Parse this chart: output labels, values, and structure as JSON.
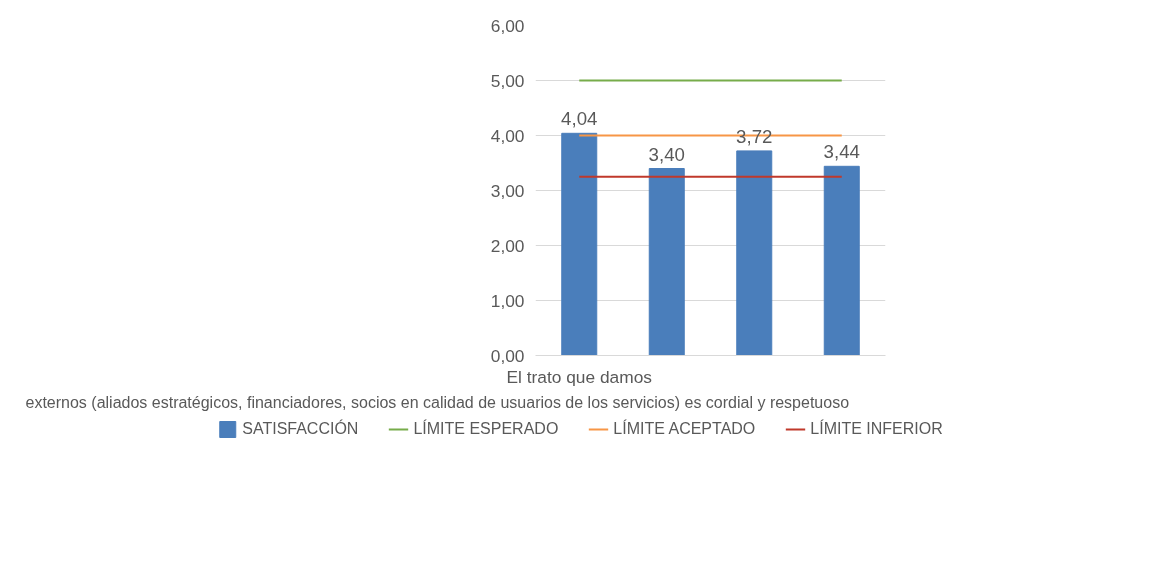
{
  "chart_data": {
    "type": "bar",
    "categories": [
      "El trato que damos",
      null,
      null,
      null
    ],
    "series": [
      {
        "name": "SATISFACCIÓN",
        "color": "#4a7ebb",
        "values": [
          4.04,
          3.4,
          3.72,
          3.44
        ],
        "value_labels": [
          "4,04",
          "3,40",
          "3,72",
          "3,44"
        ]
      },
      {
        "name": "LÍMITE ESPERADO",
        "type": "line",
        "color": "#77ac4a",
        "values": [
          5,
          5,
          5,
          5
        ]
      },
      {
        "name": "LÍMITE ACEPTADO",
        "type": "line",
        "color": "#f79646",
        "values": [
          4,
          4,
          4,
          4
        ]
      },
      {
        "name": "LÍMITE INFERIOR",
        "type": "line",
        "color": "#c0392b",
        "values": [
          3.25,
          3.25,
          3.25,
          3.25
        ]
      }
    ],
    "ylim": [
      0,
      6
    ],
    "yticks": [
      {
        "value": 0,
        "label": "0,00"
      },
      {
        "value": 1,
        "label": "1,00"
      },
      {
        "value": 2,
        "label": "2,00"
      },
      {
        "value": 3,
        "label": "3,00"
      },
      {
        "value": 4,
        "label": "4,00"
      },
      {
        "value": 5,
        "label": "5,00"
      },
      {
        "value": 6,
        "label": "6,00"
      }
    ],
    "grid": "y",
    "legend": "bottom",
    "annotations": [
      "externos (aliados estratégicos, financiadores, socios en calidad de usuarios de los servicios) es cordial y respetuoso"
    ]
  }
}
